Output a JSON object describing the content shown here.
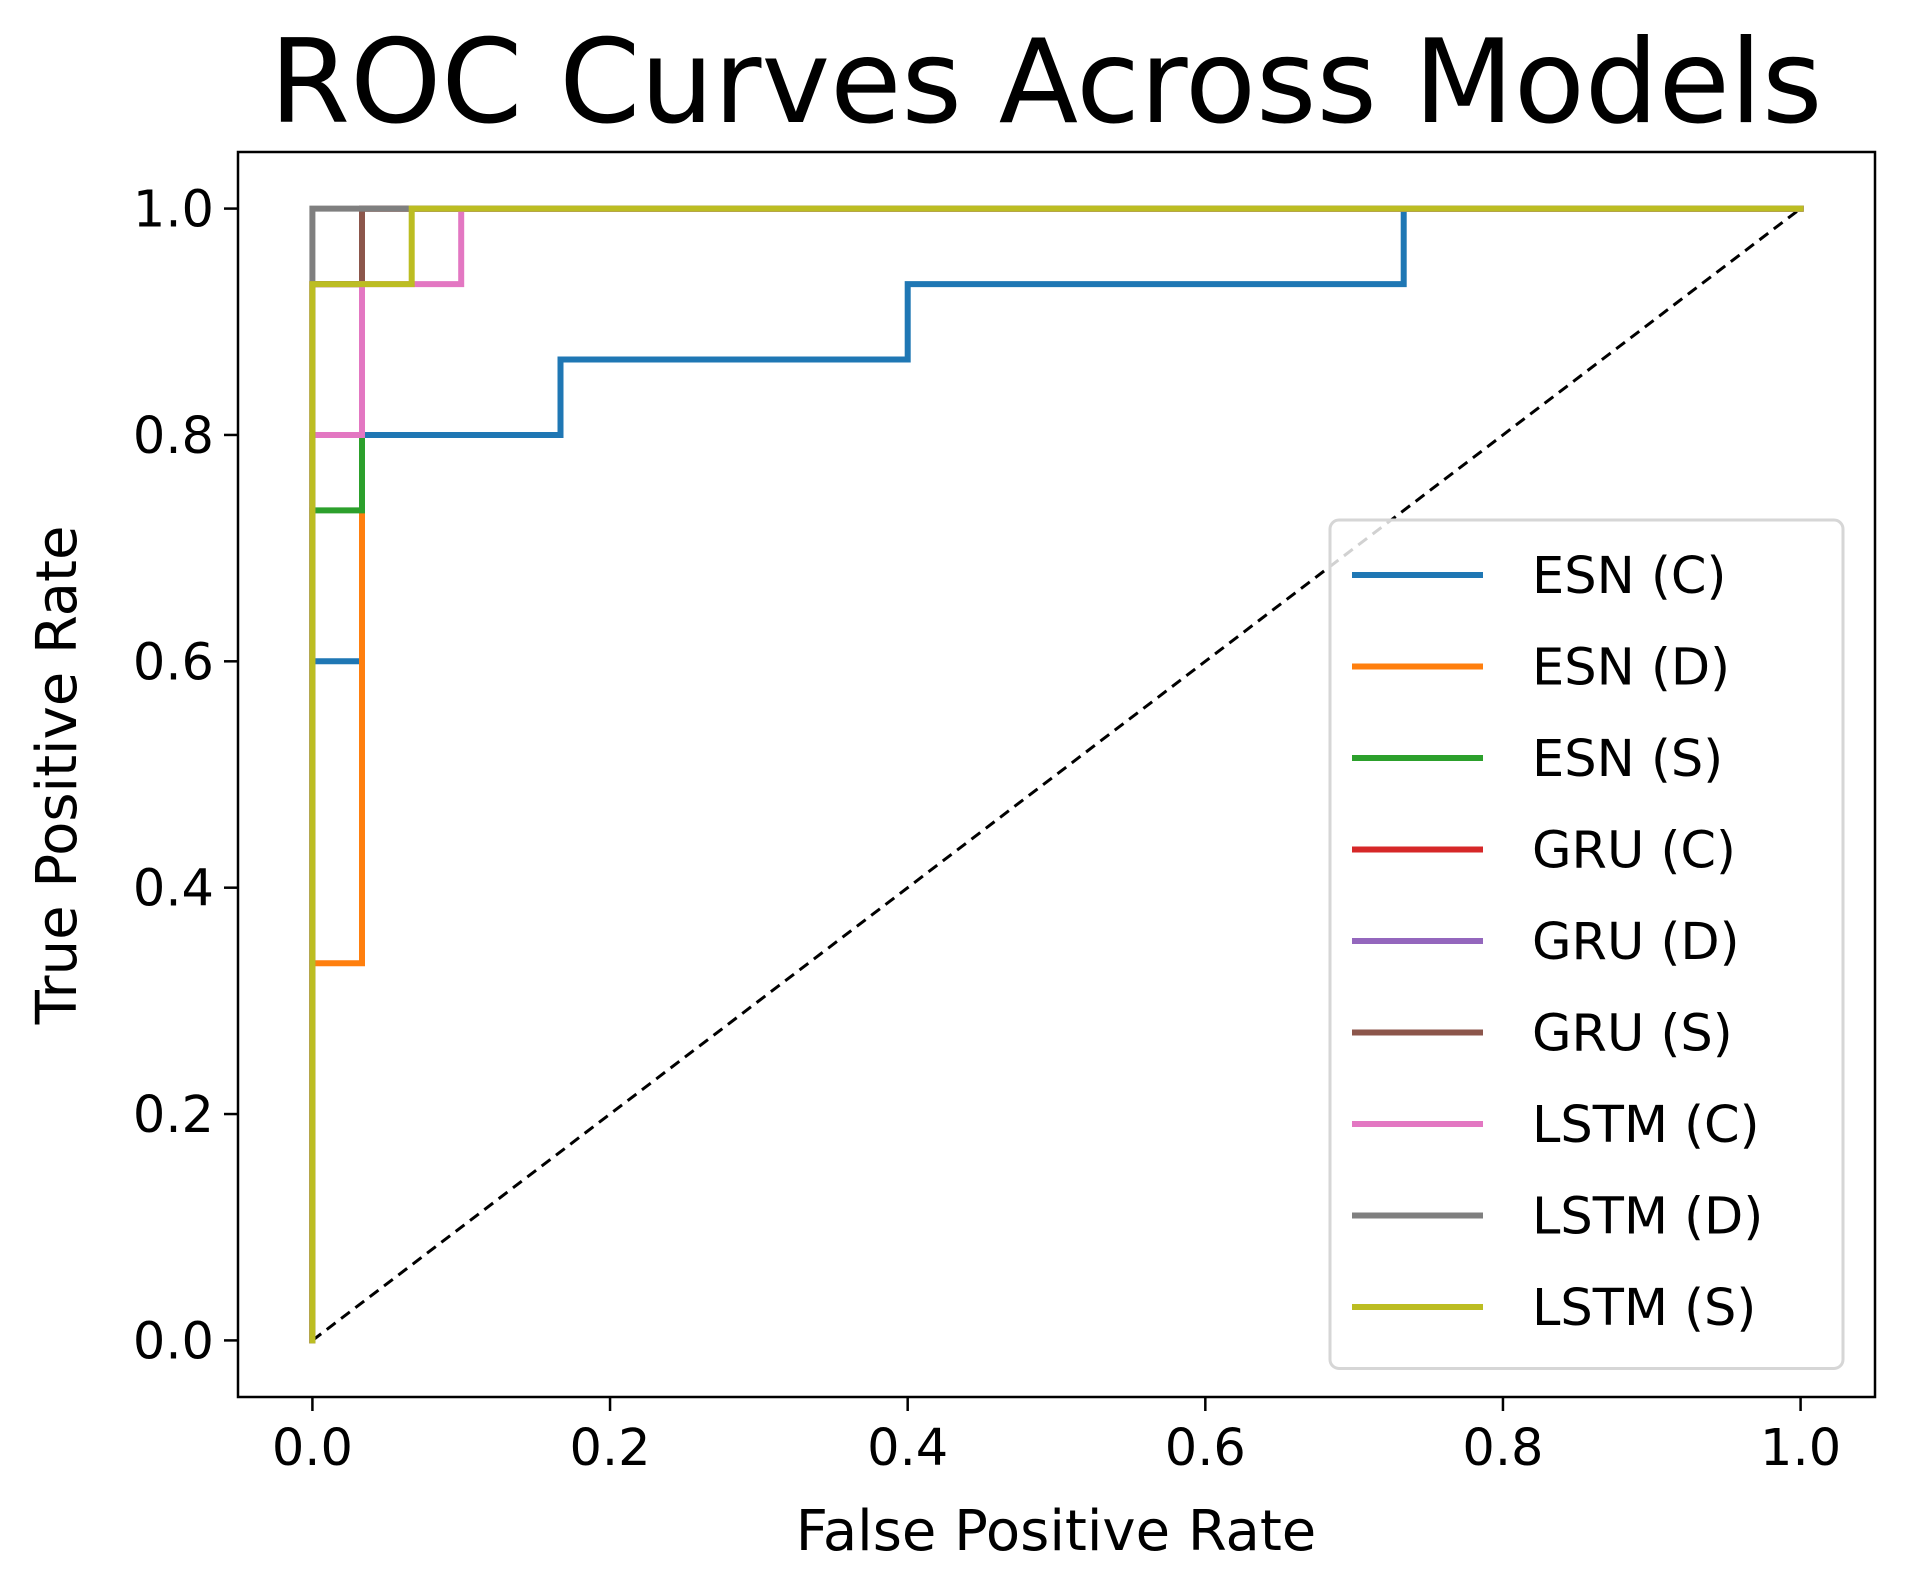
{
  "chart_data": {
    "type": "line",
    "title": "ROC Curves Across Models",
    "xlabel": "False Positive Rate",
    "ylabel": "True Positive Rate",
    "xlim": [
      -0.05,
      1.05
    ],
    "ylim": [
      -0.05,
      1.05
    ],
    "xticks": [
      "0.0",
      "0.2",
      "0.4",
      "0.6",
      "0.8",
      "1.0"
    ],
    "yticks": [
      "0.0",
      "0.2",
      "0.4",
      "0.6",
      "0.8",
      "1.0"
    ],
    "grid": false,
    "legend_position": "lower right",
    "reference_line": {
      "x": [
        0,
        1
      ],
      "y": [
        0,
        1
      ],
      "color": "#000000",
      "style": "dashed"
    },
    "series": [
      {
        "name": "ESN (C)",
        "color": "#1f77b4",
        "x": [
          0,
          0,
          0.0333,
          0,
          0,
          0.0333,
          0.1667,
          0.1667,
          0.4,
          0.4,
          0.7333,
          0.7333,
          1
        ],
        "y": [
          0,
          0.6,
          0.6,
          0.6,
          0.8,
          0.8,
          0.8,
          0.8667,
          0.8667,
          0.9333,
          0.9333,
          1,
          1
        ]
      },
      {
        "name": "ESN (D)",
        "color": "#ff7f0e",
        "x": [
          0,
          0,
          0.0333,
          0.0333,
          1
        ],
        "y": [
          0,
          0.3333,
          0.3333,
          1,
          1
        ]
      },
      {
        "name": "ESN (S)",
        "color": "#2ca02c",
        "x": [
          0,
          0,
          0.0333,
          0.0333,
          1
        ],
        "y": [
          0,
          0.7333,
          0.7333,
          1,
          1
        ]
      },
      {
        "name": "GRU (C)",
        "color": "#d62728",
        "x": [
          0,
          0,
          0.0333,
          0.0333,
          1
        ],
        "y": [
          0,
          0.9333,
          0.9333,
          1,
          1
        ]
      },
      {
        "name": "GRU (D)",
        "color": "#9467bd",
        "x": [
          0,
          0,
          0.0333,
          0.0333,
          1
        ],
        "y": [
          0,
          0.9333,
          0.9333,
          1,
          1
        ]
      },
      {
        "name": "GRU (S)",
        "color": "#8c564b",
        "x": [
          0,
          0,
          0.0333,
          0.0333,
          1
        ],
        "y": [
          0,
          0.9333,
          0.9333,
          1,
          1
        ]
      },
      {
        "name": "LSTM (C)",
        "color": "#e377c2",
        "x": [
          0,
          0,
          0.0333,
          0.0333,
          0.1,
          0.1,
          1
        ],
        "y": [
          0,
          0.8,
          0.8,
          0.9333,
          0.9333,
          1,
          1
        ]
      },
      {
        "name": "LSTM (D)",
        "color": "#7f7f7f",
        "x": [
          0,
          0,
          1
        ],
        "y": [
          0,
          1,
          1
        ]
      },
      {
        "name": "LSTM (S)",
        "color": "#bcbd22",
        "x": [
          0,
          0,
          0.0667,
          0.0667,
          1
        ],
        "y": [
          0,
          0.9333,
          0.9333,
          1,
          1
        ]
      }
    ]
  }
}
